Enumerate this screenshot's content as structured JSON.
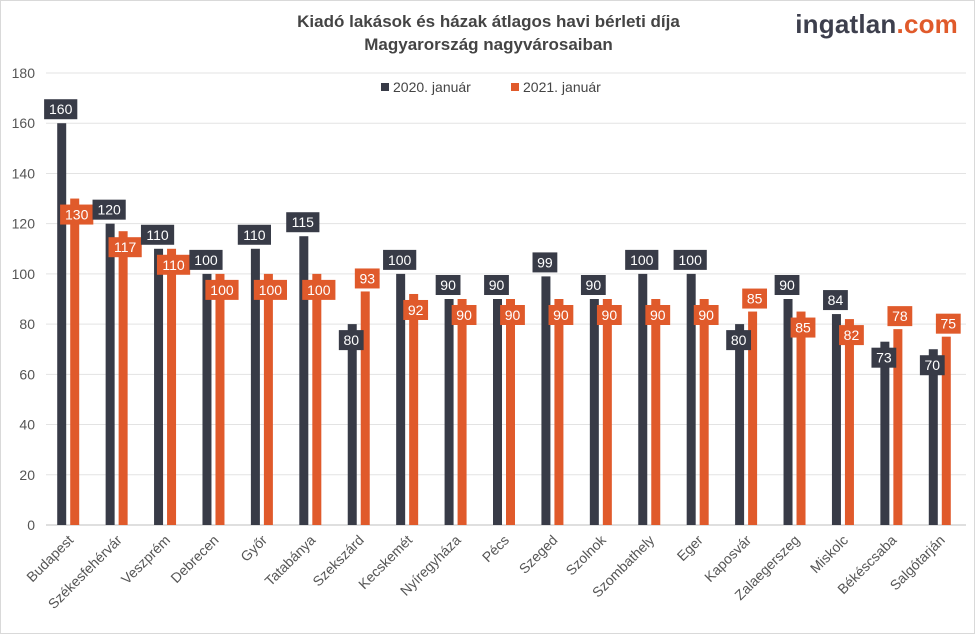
{
  "title_line1": "Kiadó lakások és házak átlagos havi bérleti díja",
  "title_line2": "Magyarország nagyvárosaiban",
  "logo": {
    "main": "ingatlan",
    "suffix": ".com"
  },
  "colors": {
    "series1": "#383b47",
    "series2": "#e05a2b"
  },
  "chart_data": {
    "type": "bar",
    "title": "Kiadó lakások és házak átlagos havi bérleti díja Magyarország nagyvárosaiban",
    "xlabel": "",
    "ylabel": "",
    "ylim": [
      0,
      180
    ],
    "yticks": [
      0,
      20,
      40,
      60,
      80,
      100,
      120,
      140,
      160,
      180
    ],
    "grid": true,
    "legend_position": "top-center",
    "categories": [
      "Budapest",
      "Székesfehérvár",
      "Veszprém",
      "Debrecen",
      "Győr",
      "Tatabánya",
      "Szekszárd",
      "Kecskemét",
      "Nyíregyháza",
      "Pécs",
      "Szeged",
      "Szolnok",
      "Szombathely",
      "Eger",
      "Kaposvár",
      "Zalaegerszeg",
      "Miskolc",
      "Békéscsaba",
      "Salgótarján"
    ],
    "series": [
      {
        "name": "2020. január",
        "values": [
          160,
          120,
          110,
          100,
          110,
          115,
          80,
          100,
          90,
          90,
          99,
          90,
          100,
          100,
          80,
          90,
          84,
          73,
          70
        ]
      },
      {
        "name": "2021. január",
        "values": [
          130,
          117,
          110,
          100,
          100,
          100,
          93,
          92,
          90,
          90,
          90,
          90,
          90,
          90,
          85,
          85,
          82,
          78,
          75
        ]
      }
    ]
  }
}
